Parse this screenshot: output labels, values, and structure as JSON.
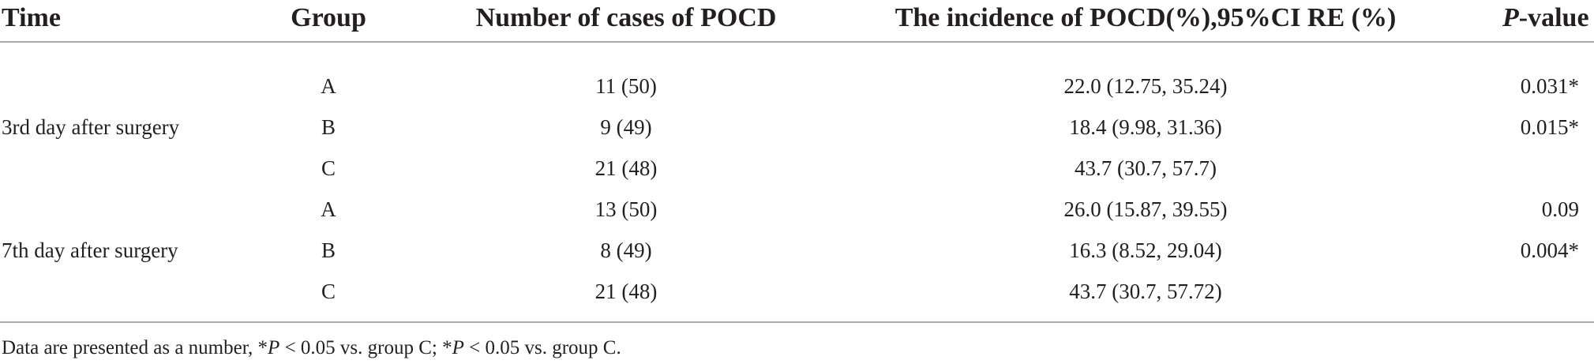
{
  "table": {
    "headers": {
      "time": "Time",
      "group": "Group",
      "cases": "Number of cases of POCD",
      "incidence": "The incidence of POCD(%),95%CI RE (%)",
      "pvalue_italic": "P",
      "pvalue_rest": "-value"
    },
    "row_labels": {
      "day3": "3rd day after surgery",
      "day7": "7th day after surgery"
    },
    "rows": [
      {
        "group": "A",
        "cases": "11 (50)",
        "incidence": "22.0 (12.75, 35.24)",
        "pvalue": "0.031*"
      },
      {
        "group": "B",
        "cases": "9 (49)",
        "incidence": "18.4 (9.98, 31.36)",
        "pvalue": "0.015*"
      },
      {
        "group": "C",
        "cases": "21 (48)",
        "incidence": "43.7 (30.7, 57.7)",
        "pvalue": ""
      },
      {
        "group": "A",
        "cases": "13 (50)",
        "incidence": "26.0 (15.87, 39.55)",
        "pvalue": "0.09"
      },
      {
        "group": "B",
        "cases": "8 (49)",
        "incidence": "16.3 (8.52, 29.04)",
        "pvalue": "0.004*"
      },
      {
        "group": "C",
        "cases": "21 (48)",
        "incidence": "43.7 (30.7, 57.72)",
        "pvalue": ""
      }
    ]
  },
  "footnote": {
    "part1": "Data are presented as a number, *",
    "p1": "P",
    "part2": " < 0.05 vs. group C; *",
    "p2": "P",
    "part3": " < 0.05 vs. group C."
  }
}
